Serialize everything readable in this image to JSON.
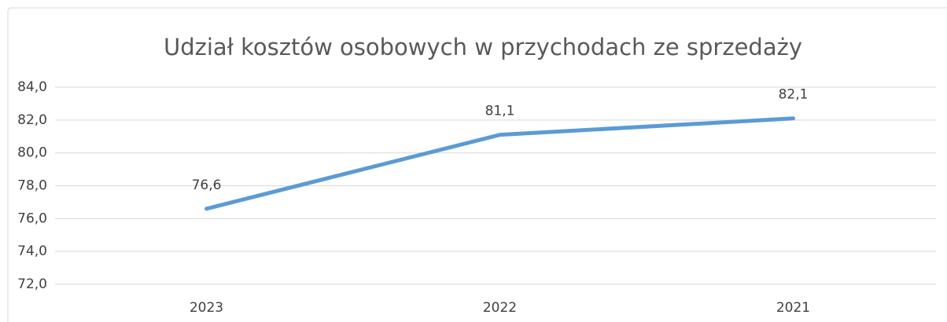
{
  "chart_data": {
    "type": "line",
    "title": "Udział kosztów osobowych w przychodach ze sprzedaży",
    "categories": [
      "2023",
      "2022",
      "2021"
    ],
    "values": [
      76.6,
      81.1,
      82.1
    ],
    "value_labels": [
      "76,6",
      "81,1",
      "82,1"
    ],
    "color": "#5b9bd5",
    "ylim": [
      72,
      84
    ],
    "yticks": [
      {
        "value": 72,
        "label": "72,0"
      },
      {
        "value": 74,
        "label": "74,0"
      },
      {
        "value": 76,
        "label": "76,0"
      },
      {
        "value": 78,
        "label": "78,0"
      },
      {
        "value": 80,
        "label": "80,0"
      },
      {
        "value": 82,
        "label": "82,0"
      },
      {
        "value": 84,
        "label": "84,0"
      }
    ],
    "grid": true
  }
}
